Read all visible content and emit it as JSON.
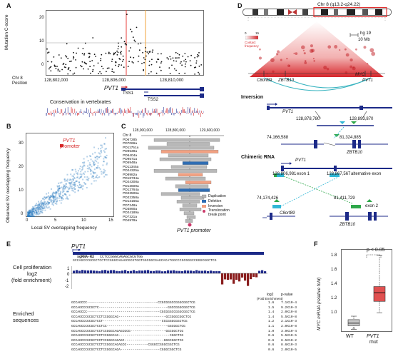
{
  "panel_letters": {
    "a": "A",
    "b": "B",
    "c": "C",
    "d": "D",
    "e": "E",
    "f": "F"
  },
  "panelA": {
    "ylabel": "Mutation C-score",
    "yticks": [
      "0",
      "10",
      "20"
    ],
    "xprefix1": "Chr 8",
    "xprefix2": "Position",
    "xticks": [
      "128,802,000",
      "128,806,000",
      "128,810,000"
    ],
    "gene": "PVT1",
    "tss1": "TSS1",
    "tss2": "TSS2",
    "conservation": "Conservation in vertebrates",
    "colors": {
      "redline": "#e8413c",
      "orangeline": "#f2a33a",
      "gene": "#1c2a88",
      "cons_blue": "#2a3596",
      "cons_red": "#d2232a"
    }
  },
  "panelB": {
    "xlabel": "Local SV overlapping frequency",
    "ylabel": "Observed SV overlapping frequency",
    "xticks": [
      "0",
      "5",
      "10",
      "15"
    ],
    "yticks": [
      "0",
      "10",
      "20",
      "30"
    ],
    "annot1": "PVT1",
    "annot2": "promoter",
    "colors": {
      "point": "#2b7bc0",
      "highlight": "#d62728"
    }
  },
  "panelC": {
    "xticks": [
      "128,000,000",
      "128,800,000",
      "129,600,000"
    ],
    "chr": "Chr 8",
    "samples": [
      "PD6728b",
      "PD7066a",
      "PD11751a",
      "PD9539a",
      "PD6404a",
      "PD9571a",
      "PD5948a",
      "PD11345a",
      "PD24325a",
      "PD8982a",
      "PD18734a",
      "PD24308a",
      "PD13609a",
      "PD13764a",
      "PD23506a",
      "PD22358a",
      "PD13165a",
      "PD7248a",
      "PD3890a",
      "PD24189a",
      "PD7321a",
      "PD4978a"
    ],
    "legend": [
      "Duplication",
      "Deletion",
      "Inversion",
      "Translocation break point"
    ],
    "footer": "PVT1 promoter",
    "colors": {
      "duplication": "#b8b8b8",
      "deletion": "#2f6db3",
      "inversion": "#f2a182",
      "translocation": "#cc3a6a"
    }
  },
  "panelD": {
    "chr": "Chr 8 (q13.2-q24.22)",
    "scale1": "hg 19",
    "scale2": "10 Mb",
    "contact_legend_min": "0",
    "contact_legend_max": "15",
    "contact_legend_label1": "Contact",
    "contact_legend_label2": "frequency",
    "genes": [
      "C8orf89",
      "ZBTB10",
      "MYC",
      "PVT1"
    ],
    "inversion_title": "Inversion",
    "inv_pvt1": "PVT1",
    "inv_pos1": "128,878,780",
    "inv_pos2": "128,893,870",
    "inv_pos3": "74,166,588",
    "inv_pos4": "81,324,885",
    "inv_zbtb": "ZBTB10",
    "chim_title": "Chimeric RNA",
    "chim_pvt1": "PVT1",
    "chim_pos1": "128,806,981",
    "chim_exon1": "exon 1",
    "chim_pos2": "128,867,567",
    "chim_alt": "alternative exon",
    "chim_pos3": "74,174,426",
    "chim_pos4": "81,411,729",
    "chim_exon2": "exon 2",
    "chim_c8": "C8orf89",
    "chim_zbtb": "ZBTB10",
    "colors": {
      "heat": "#d6262b",
      "arc": "#39b4c0",
      "gene": "#1c2a88",
      "green": "#2ea84a",
      "cyan": "#30b7d6"
    }
  },
  "panelE": {
    "gene": "PVT1",
    "sgrna": "sgRNA-R2",
    "ref_seq1": "CCTCCGGGCAGAGCGCGTGG",
    "ref_seq2": "GCCAGCCCGCGCTCCTCCGGGCAGAGCGCGTGGTGGCGGCGAGCACATGGCCCGCGGGCCGGGCGGCTCG",
    "yaxis1": "Cell proliferation",
    "yaxis2": "log2",
    "yaxis3": "(fold enrichment)",
    "yticks": [
      "1",
      "0",
      "-1",
      "-2"
    ],
    "enriched1": "Enriched",
    "enriched2": "sequences",
    "col_log2": "log2",
    "col_fold": "(Fold Enrichment)",
    "col_p": "p-value",
    "rows": [
      {
        "seq": "GCCAGCCC------------------------------------CCGCGGGCCGGGCGGCTCG",
        "log2": "1.6",
        "p": "7.1X10-4"
      },
      {
        "seq": "GCCAGCCCGCGCTC-----------------------------------GGCCGGGCGGCTCG",
        "log2": "1.5",
        "p": "9.2X10-3"
      },
      {
        "seq": "GCCAGCCC-------------------------------------CGCGGGCCGGGCGGCTCG",
        "log2": "1.4",
        "p": "2.0X10-8"
      },
      {
        "seq": "GCCAGCCCGCGCTCCTCCGGGCAG------------------------GCCGGGCGGCTCG",
        "log2": "1.4",
        "p": "5.5X10-8"
      },
      {
        "seq": "GCCAGCCCGCGCTCCT------------------------------CCCGGGCGGCTCG",
        "log2": "1.2",
        "p": "2.1X10-3"
      },
      {
        "seq": "GCCAGCCCGCGCTCCTCC-------------------------------GGCGGCTCG",
        "log2": "1.1",
        "p": "2.0X10-8"
      },
      {
        "seq": "GCCAGCCCGCGCTCCTCCGGGCAGAGCGCG------------------GGCGGCTCG",
        "log2": "1.0",
        "p": "3.9X10-4"
      },
      {
        "seq": "GCCAGCCCGCGCTCCTCCGGGCAG--------------------------CGGCTCG",
        "log2": "0.6",
        "p": "5.5X10-5"
      },
      {
        "seq": "GCCAGCCCGCGCTCCTCCGGGCAGAGC--------------------GGGCGGCTCG",
        "log2": "0.6",
        "p": "6.5X10-2"
      },
      {
        "seq": "GCCAGCCCGCGCTCCTCCGGGCAGAGCG-----------CGGGCCGGGCGGCTCG",
        "log2": "0.6",
        "p": "8.6X10-3"
      },
      {
        "seq": "GCCAGCCCGCGCTCCTCCGGGCAGA--------------------CGGGCGGCTCG",
        "log2": "0.6",
        "p": "2.0X10-5"
      }
    ],
    "colors": {
      "bar_pos": "#1f2a8c",
      "bar_neg": "#8a1e1e",
      "gene": "#1c2a88"
    }
  },
  "panelF": {
    "pvalue": "p < 0.05",
    "ylabel": "MYC mRNA (relative fold)",
    "yticks": [
      "1.0",
      "1.2",
      "1.4",
      "1.6",
      "1.8"
    ],
    "cat_wt": "WT",
    "cat_mut1": "PVT1",
    "cat_mut2": "mut",
    "colors": {
      "wt": "#c8c8c8",
      "mut": "#e05050"
    }
  },
  "chart_data": [
    {
      "type": "scatter",
      "panel": "A",
      "ylabel": "Mutation C-score",
      "xticks": [
        "128,802,000",
        "128,806,000",
        "128,810,000"
      ],
      "ylim": [
        0,
        25
      ]
    },
    {
      "type": "scatter",
      "panel": "B",
      "xlabel": "Local SV overlapping frequency",
      "ylabel": "Observed SV overlapping frequency",
      "xlim": [
        0,
        15
      ],
      "ylim": [
        0,
        32
      ],
      "highlight": {
        "label": "PVT1 promoter",
        "x": 5,
        "y": 26
      }
    },
    {
      "type": "bar",
      "panel": "E",
      "ylabel": "Cell proliferation log2 (fold enrichment)",
      "ylim": [
        -2,
        1
      ]
    },
    {
      "type": "box",
      "panel": "F",
      "categories": [
        "WT",
        "PVT1 mut"
      ],
      "ylabel": "MYC mRNA (relative fold)",
      "ylim": [
        0.9,
        1.85
      ],
      "series": [
        {
          "name": "WT",
          "min": 0.93,
          "q1": 0.97,
          "median": 1.0,
          "q3": 1.04,
          "max": 1.08
        },
        {
          "name": "PVT1 mut",
          "min": 1.12,
          "q1": 1.25,
          "median": 1.35,
          "q3": 1.42,
          "max": 1.78
        }
      ]
    }
  ]
}
